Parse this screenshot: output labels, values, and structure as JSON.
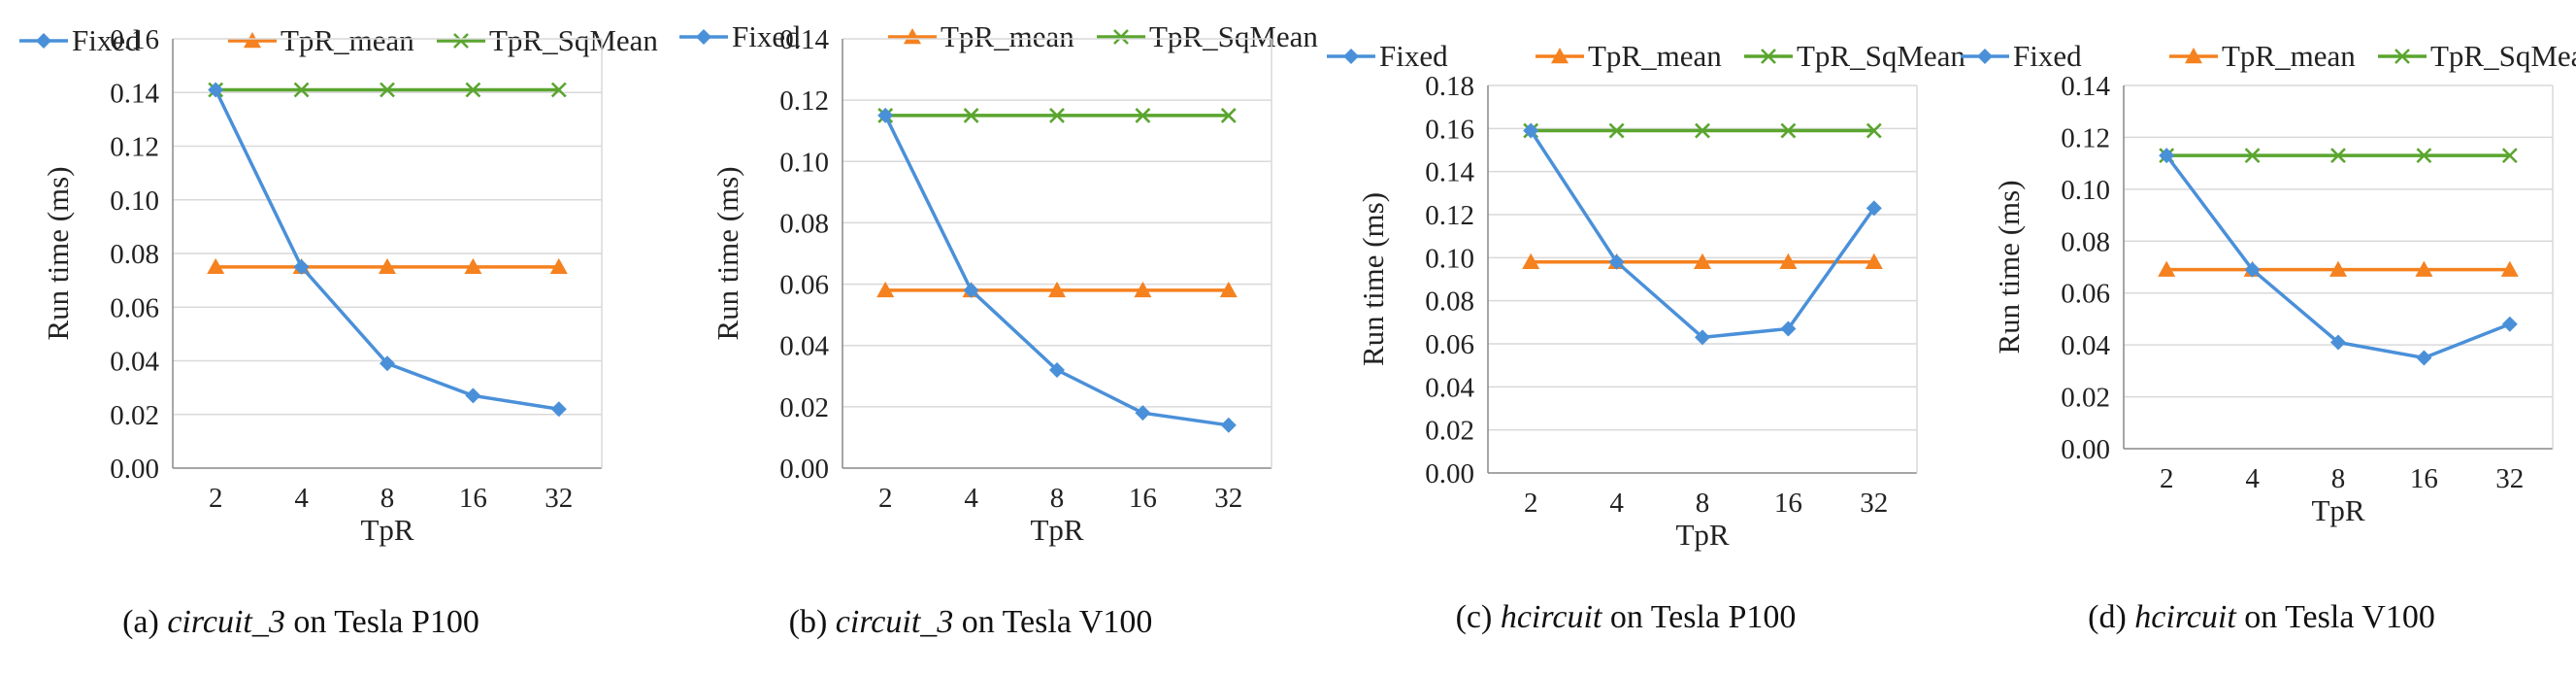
{
  "colors": {
    "Fixed": "#4a90d9",
    "TpR_mean": "#f5811f",
    "TpR_SqMean": "#5aa52f",
    "grid": "#d9d9d9",
    "axis": "#888888"
  },
  "panels": [
    {
      "caption": {
        "prefix": "(a) ",
        "name": "circuit_3",
        "suffix": " on Tesla P100"
      },
      "chart_data": {
        "type": "line",
        "categories": [
          "2",
          "4",
          "8",
          "16",
          "32"
        ],
        "series": [
          {
            "name": "Fixed",
            "values": [
              0.141,
              0.075,
              0.039,
              0.027,
              0.022
            ]
          },
          {
            "name": "TpR_mean",
            "values": [
              0.075,
              0.075,
              0.075,
              0.075,
              0.075
            ]
          },
          {
            "name": "TpR_SqMean",
            "values": [
              0.141,
              0.141,
              0.141,
              0.141,
              0.141
            ]
          }
        ],
        "xlabel": "TpR",
        "ylabel": "Run time (ms)",
        "ylim": [
          0,
          0.16
        ],
        "yticks": [
          "0.00",
          "0.02",
          "0.04",
          "0.06",
          "0.08",
          "0.10",
          "0.12",
          "0.14",
          "0.16"
        ],
        "grid": true,
        "legend": "top"
      }
    },
    {
      "caption": {
        "prefix": "(b) ",
        "name": "circuit_3",
        "suffix": " on Tesla V100"
      },
      "chart_data": {
        "type": "line",
        "categories": [
          "2",
          "4",
          "8",
          "16",
          "32"
        ],
        "series": [
          {
            "name": "Fixed",
            "values": [
              0.115,
              0.058,
              0.032,
              0.018,
              0.014
            ]
          },
          {
            "name": "TpR_mean",
            "values": [
              0.058,
              0.058,
              0.058,
              0.058,
              0.058
            ]
          },
          {
            "name": "TpR_SqMean",
            "values": [
              0.115,
              0.115,
              0.115,
              0.115,
              0.115
            ]
          }
        ],
        "xlabel": "TpR",
        "ylabel": "Run time (ms)",
        "ylim": [
          0,
          0.14
        ],
        "yticks": [
          "0.00",
          "0.02",
          "0.04",
          "0.06",
          "0.08",
          "0.10",
          "0.12",
          "0.14"
        ],
        "grid": true,
        "legend": "top"
      }
    },
    {
      "caption": {
        "prefix": "(c) ",
        "name": "hcircuit",
        "suffix": " on Tesla P100"
      },
      "chart_data": {
        "type": "line",
        "categories": [
          "2",
          "4",
          "8",
          "16",
          "32"
        ],
        "series": [
          {
            "name": "Fixed",
            "values": [
              0.159,
              0.098,
              0.063,
              0.067,
              0.123
            ]
          },
          {
            "name": "TpR_mean",
            "values": [
              0.098,
              0.098,
              0.098,
              0.098,
              0.098
            ]
          },
          {
            "name": "TpR_SqMean",
            "values": [
              0.159,
              0.159,
              0.159,
              0.159,
              0.159
            ]
          }
        ],
        "xlabel": "TpR",
        "ylabel": "Run time (ms)",
        "ylim": [
          0,
          0.18
        ],
        "yticks": [
          "0.00",
          "0.02",
          "0.04",
          "0.06",
          "0.08",
          "0.10",
          "0.12",
          "0.14",
          "0.16",
          "0.18"
        ],
        "grid": true,
        "legend": "top"
      }
    },
    {
      "caption": {
        "prefix": "(d) ",
        "name": "hcircuit",
        "suffix": " on Tesla V100"
      },
      "chart_data": {
        "type": "line",
        "categories": [
          "2",
          "4",
          "8",
          "16",
          "32"
        ],
        "series": [
          {
            "name": "Fixed",
            "values": [
              0.113,
              0.069,
              0.041,
              0.035,
              0.048
            ]
          },
          {
            "name": "TpR_mean",
            "values": [
              0.069,
              0.069,
              0.069,
              0.069,
              0.069
            ]
          },
          {
            "name": "TpR_SqMean",
            "values": [
              0.113,
              0.113,
              0.113,
              0.113,
              0.113
            ]
          }
        ],
        "xlabel": "TpR",
        "ylabel": "Run time (ms)",
        "ylim": [
          0,
          0.14
        ],
        "yticks": [
          "0.00",
          "0.02",
          "0.04",
          "0.06",
          "0.08",
          "0.10",
          "0.12",
          "0.14"
        ],
        "grid": true,
        "legend": "top"
      }
    }
  ]
}
